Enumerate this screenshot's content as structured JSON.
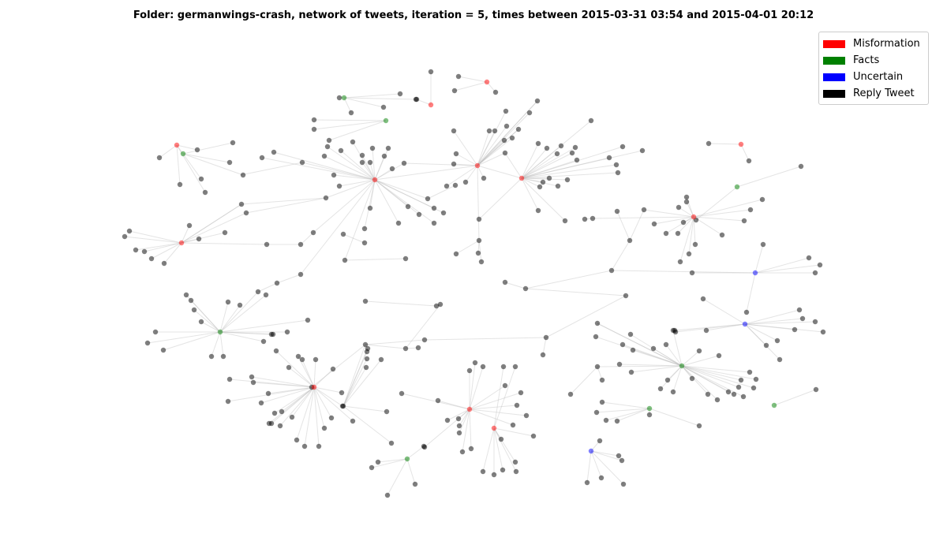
{
  "title": "Folder: germanwings-crash, network of tweets, iteration = 5, times between 2015-03-31 03:54 and 2015-04-01 20:12",
  "legend": {
    "items": [
      {
        "label": "Misformation",
        "color": "#ff0000"
      },
      {
        "label": "Facts",
        "color": "#008000"
      },
      {
        "label": "Uncertain",
        "color": "#0000ff"
      },
      {
        "label": "Reply Tweet",
        "color": "#000000"
      }
    ]
  },
  "category_colors": {
    "m": "#ff0000",
    "f": "#008000",
    "u": "#0000ff",
    "r": "#000000"
  }
}
